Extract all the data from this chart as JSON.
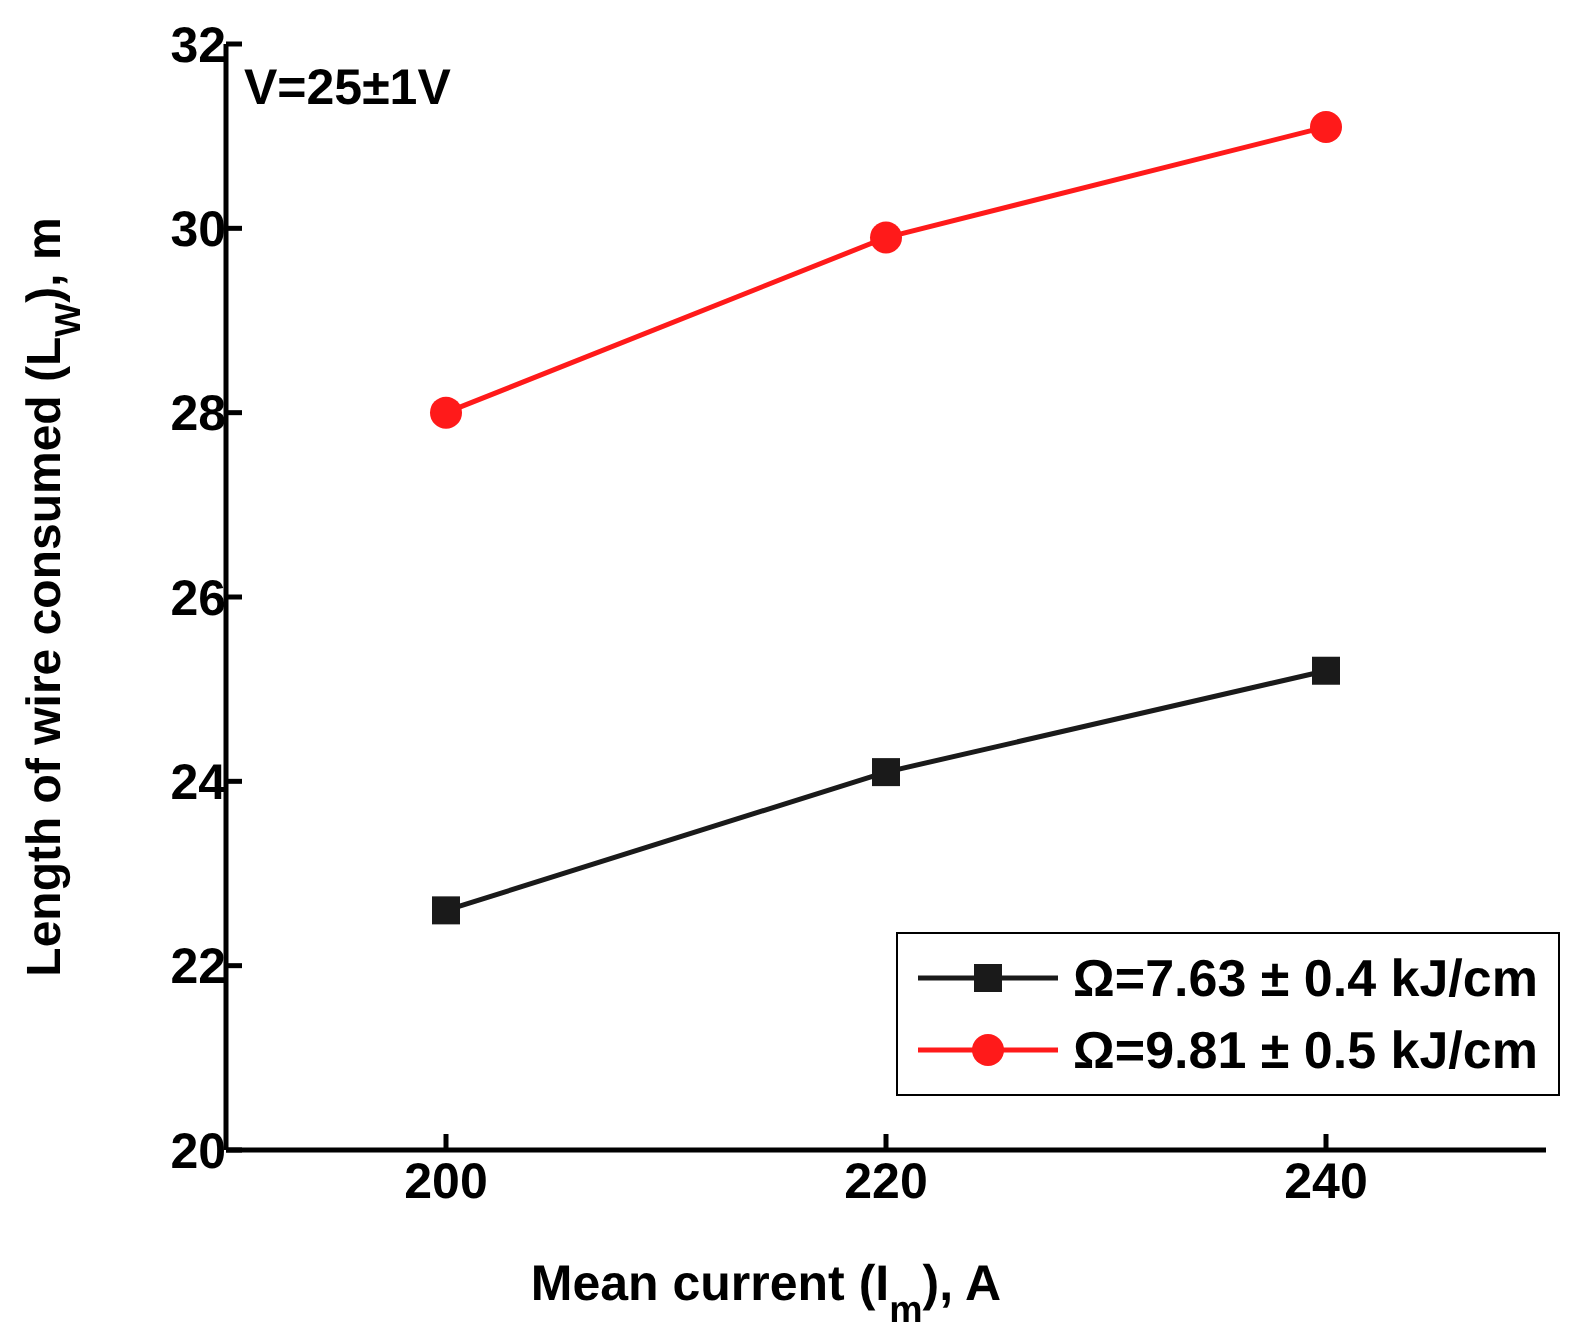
{
  "chart_data": {
    "type": "line",
    "xlabel": "Mean current (I$_{m}$), A",
    "ylabel": "Length of wire consumed (L$_{W}$), m",
    "x": [
      200,
      220,
      240
    ],
    "series": [
      {
        "name": "Ω=7.63 ± 0.4 kJ/cm",
        "color": "#1a1a1a",
        "marker": "square",
        "values": [
          22.6,
          24.1,
          25.2
        ]
      },
      {
        "name": "Ω=9.81 ± 0.5 kJ/cm",
        "color": "#ff1a1a",
        "marker": "circle",
        "values": [
          28.0,
          29.9,
          31.1
        ]
      }
    ],
    "xlim": [
      190,
      250
    ],
    "xticks": [
      200,
      220,
      240
    ],
    "ylim": [
      20,
      32
    ],
    "yticks": [
      20,
      22,
      24,
      26,
      28,
      30,
      32
    ],
    "grid": false,
    "legend": "bottom right",
    "annotations": [
      "V=25±1V"
    ]
  }
}
